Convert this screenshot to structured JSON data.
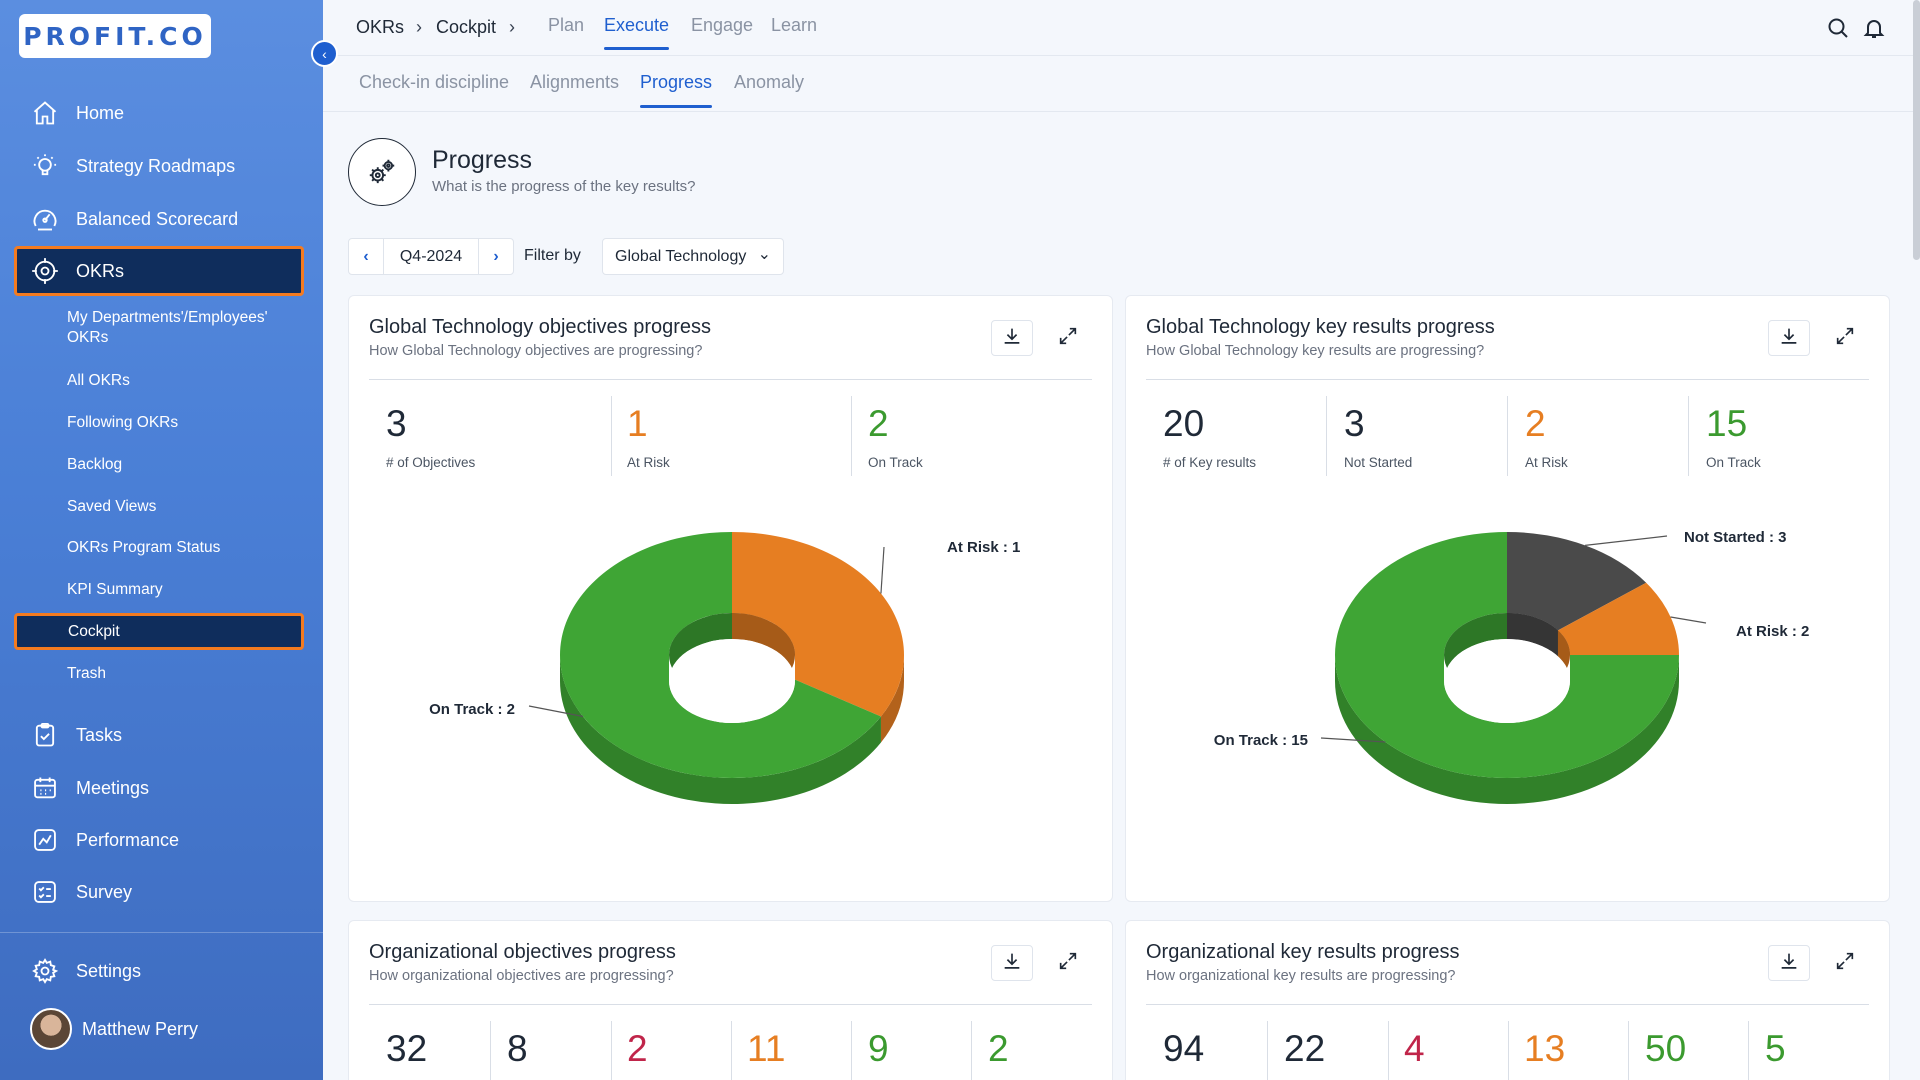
{
  "app": {
    "logo_text": "PROFIT.CO"
  },
  "sidebar": {
    "collapse_glyph": "‹",
    "main_items": [
      {
        "label": "Home",
        "icon": "home-icon"
      },
      {
        "label": "Strategy Roadmaps",
        "icon": "lightbulb-icon"
      },
      {
        "label": "Balanced Scorecard",
        "icon": "gauge-icon"
      },
      {
        "label": "OKRs",
        "icon": "target-icon"
      }
    ],
    "okr_sub_items": [
      "My Departments'/Employees' OKRs",
      "All OKRs",
      "Following OKRs",
      "Backlog",
      "Saved Views",
      "OKRs Program Status",
      "KPI Summary",
      "Cockpit",
      "Trash"
    ],
    "lower_items": [
      {
        "label": "Tasks",
        "icon": "clipboard-icon"
      },
      {
        "label": "Meetings",
        "icon": "calendar-icon"
      },
      {
        "label": "Performance",
        "icon": "chart-line-icon"
      },
      {
        "label": "Survey",
        "icon": "survey-icon"
      }
    ],
    "settings_label": "Settings",
    "user_name": "Matthew Perry"
  },
  "topbar": {
    "breadcrumb": [
      "OKRs",
      "Cockpit"
    ],
    "crumb_sep": "›",
    "tabs": [
      "Plan",
      "Execute",
      "Engage",
      "Learn"
    ],
    "active_tab": "Execute"
  },
  "subtabs": {
    "items": [
      "Check-in discipline",
      "Alignments",
      "Progress",
      "Anomaly"
    ],
    "active": "Progress"
  },
  "page": {
    "title": "Progress",
    "subtitle": "What is the progress of the key results?",
    "period": "Q4-2024",
    "filter_label": "Filter by",
    "filter_value": "Global Technology",
    "prev_glyph": "‹",
    "next_glyph": "›",
    "dropdown_glyph": "⌄"
  },
  "cards": [
    {
      "title": "Global Technology objectives progress",
      "subtitle": "How Global Technology objectives are progressing?",
      "stats": [
        {
          "value": "3",
          "label": "# of Objectives",
          "color": "#374151"
        },
        {
          "value": "1",
          "label": "At Risk",
          "color": "#e67e22"
        },
        {
          "value": "2",
          "label": "On Track",
          "color": "#3b9a2f"
        }
      ]
    },
    {
      "title": "Global Technology key results progress",
      "subtitle": "How Global Technology key results are progressing?",
      "stats": [
        {
          "value": "20",
          "label": "# of Key results",
          "color": "#374151"
        },
        {
          "value": "3",
          "label": "Not Started",
          "color": "#374151"
        },
        {
          "value": "2",
          "label": "At Risk",
          "color": "#e67e22"
        },
        {
          "value": "15",
          "label": "On Track",
          "color": "#3b9a2f"
        }
      ]
    },
    {
      "title": "Organizational objectives progress",
      "subtitle": "How organizational objectives are progressing?",
      "stats": [
        {
          "value": "32",
          "color": "#374151"
        },
        {
          "value": "8",
          "color": "#374151"
        },
        {
          "value": "2",
          "color": "#c0254a"
        },
        {
          "value": "11",
          "color": "#e67e22"
        },
        {
          "value": "9",
          "color": "#3b9a2f"
        },
        {
          "value": "2",
          "color": "#3b9a2f"
        }
      ]
    },
    {
      "title": "Organizational key results progress",
      "subtitle": "How organizational key results are progressing?",
      "stats": [
        {
          "value": "94",
          "color": "#374151"
        },
        {
          "value": "22",
          "color": "#374151"
        },
        {
          "value": "4",
          "color": "#c0254a"
        },
        {
          "value": "13",
          "color": "#e67e22"
        },
        {
          "value": "50",
          "color": "#3b9a2f"
        },
        {
          "value": "5",
          "color": "#3b9a2f"
        }
      ]
    }
  ],
  "chart_data": [
    {
      "type": "pie",
      "categories": [
        "At Risk",
        "On Track"
      ],
      "values": [
        1,
        2
      ],
      "colors": [
        "#e67e22",
        "#3fa535"
      ],
      "labels": [
        "At Risk : 1",
        "On Track : 2"
      ]
    },
    {
      "type": "pie",
      "categories": [
        "Not Started",
        "At Risk",
        "On Track"
      ],
      "values": [
        3,
        2,
        15
      ],
      "colors": [
        "#4a4a4a",
        "#e67e22",
        "#3fa535"
      ],
      "labels": [
        "Not Started : 3",
        "At Risk : 2",
        "On Track : 15"
      ]
    }
  ]
}
